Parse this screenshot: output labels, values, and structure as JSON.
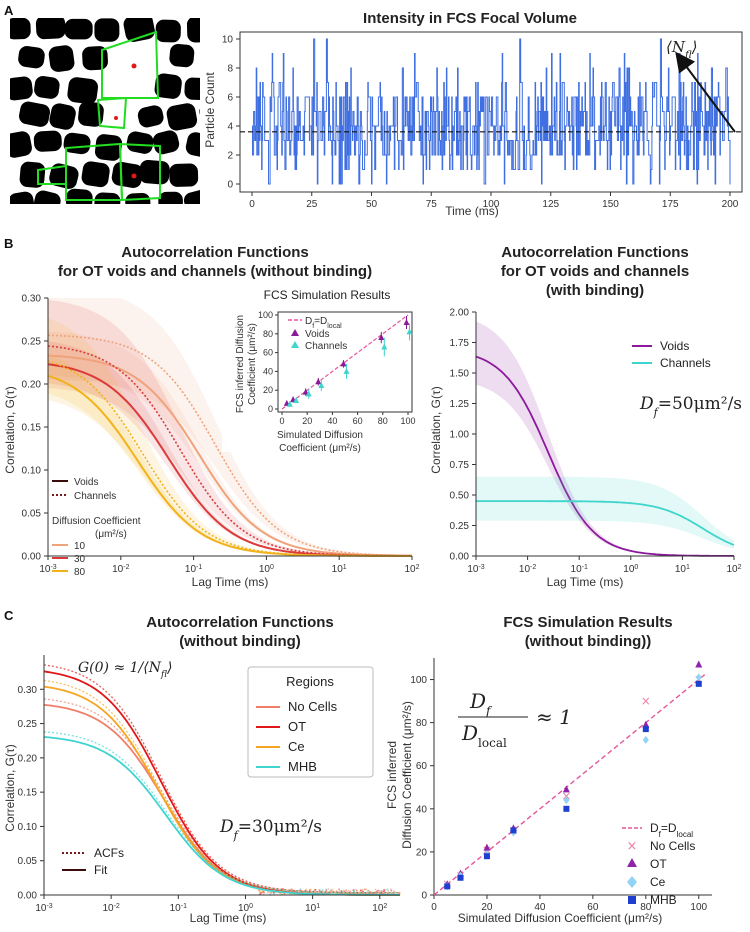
{
  "panel_labels": [
    "A",
    "B",
    "C"
  ],
  "colors": {
    "blue": "#3f6fe0",
    "voids": "#8b1a9b",
    "channels": "#3fd4cc",
    "d10": "#f0a27a",
    "d30": "#dc3a3a",
    "d80": "#f2b21a",
    "nocells": "#f07f6a",
    "ot": "#e01818",
    "ce": "#f5a623",
    "mhb": "#3fd4d0",
    "pink": "#e8559a",
    "ot_marker": "#8e24aa",
    "ce_marker": "#8fd3f5",
    "mhb_marker": "#1e3fcf"
  },
  "chart_data": [
    {
      "id": "A",
      "type": "line",
      "title": "Intensity in FCS Focal Volume",
      "xlabel": "Time (ms)",
      "ylabel": "Particle Count",
      "xlim": [
        0,
        200
      ],
      "ylim": [
        0,
        10
      ],
      "xticks": [
        0,
        25,
        50,
        75,
        100,
        125,
        150,
        175,
        200
      ],
      "yticks": [
        0,
        2,
        4,
        6,
        8,
        10
      ],
      "mean_line": 3.6,
      "annotation": "⟨N",
      "annotation_sub": "fl",
      "annotation_close": "⟩"
    },
    {
      "id": "B-left",
      "type": "line",
      "title": [
        "Autocorrelation Functions",
        "for OT voids and channels (without binding)"
      ],
      "xlabel": "Lag Time (ms)",
      "ylabel": "Correlation, G(τ)",
      "xscale": "log",
      "xlim": [
        0.001,
        100
      ],
      "ylim": [
        0,
        0.3
      ],
      "yticks": [
        "0.00",
        "0.05",
        "0.10",
        "0.15",
        "0.20",
        "0.25",
        "0.30"
      ],
      "xtick_base": "10",
      "xtick_exps": [
        "-3",
        "-2",
        "-1",
        "0",
        "1",
        "2"
      ],
      "legend_style": {
        "voids": "Voids",
        "channels": "Channels"
      },
      "legend_diff_title": [
        "Diffusion Coefficient",
        "(μm²/s)"
      ],
      "series": [
        {
          "name": "10",
          "region": "Voids",
          "g0": 0.235,
          "tau": 0.12
        },
        {
          "name": "10",
          "region": "Channels",
          "g0": 0.258,
          "tau": 0.2
        },
        {
          "name": "30",
          "region": "Voids",
          "g0": 0.228,
          "tau": 0.045
        },
        {
          "name": "30",
          "region": "Channels",
          "g0": 0.248,
          "tau": 0.065
        },
        {
          "name": "80",
          "region": "Voids",
          "g0": 0.222,
          "tau": 0.017
        },
        {
          "name": "80",
          "region": "Channels",
          "g0": 0.238,
          "tau": 0.02
        }
      ]
    },
    {
      "id": "B-inset",
      "type": "scatter",
      "title": "FCS Simulation Results",
      "xlabel": [
        "Simulated Diffusion",
        "Coefficient (μm²/s)"
      ],
      "ylabel": [
        "FCS inferred Diffusion",
        "Coefficient (μm²/s)"
      ],
      "xlim": [
        0,
        100
      ],
      "ylim": [
        0,
        100
      ],
      "xticks": [
        0,
        20,
        40,
        60,
        80,
        100
      ],
      "yticks": [
        0,
        20,
        40,
        60,
        80,
        100
      ],
      "reference_label": "D",
      "reference_sub_f": "f",
      "reference_eq": "=D",
      "reference_sub_local": "local",
      "series": [
        {
          "name": "Voids",
          "x": [
            5,
            10,
            20,
            30,
            50,
            80,
            100
          ],
          "y": [
            6,
            10,
            18,
            29,
            48,
            76,
            92
          ],
          "err": [
            2,
            3,
            4,
            4,
            4,
            6,
            7
          ]
        },
        {
          "name": "Channels",
          "x": [
            5,
            10,
            20,
            30,
            50,
            80,
            100
          ],
          "y": [
            5,
            9,
            16,
            25,
            40,
            66,
            82
          ],
          "err": [
            2,
            3,
            5,
            6,
            8,
            10,
            9
          ]
        }
      ]
    },
    {
      "id": "B-right",
      "type": "line",
      "title": [
        "Autocorrelation Functions",
        "for OT voids and channels",
        "(with binding)"
      ],
      "xlabel": "Lag Time (ms)",
      "ylabel": "Correlation, G(τ)",
      "xscale": "log",
      "xlim": [
        0.001,
        100
      ],
      "ylim": [
        0,
        2.0
      ],
      "yticks": [
        "0.00",
        "0.25",
        "0.50",
        "0.75",
        "1.00",
        "1.25",
        "1.50",
        "1.75",
        "2.00"
      ],
      "annotation": "D",
      "annotation_sub": "f",
      "annotation_rest": "=50μm²/s",
      "series": [
        {
          "name": "Voids",
          "g0": 1.7,
          "tau": 0.025,
          "band": 0.3
        },
        {
          "name": "Channels",
          "g0": 0.45,
          "tau": 25,
          "band": 0.2
        }
      ]
    },
    {
      "id": "C-left",
      "type": "line",
      "title": [
        "Autocorrelation Functions",
        "(without binding)"
      ],
      "xlabel": "Lag Time (ms)",
      "ylabel": "Correlation, G(τ)",
      "xscale": "log",
      "xlim": [
        0.001,
        200
      ],
      "ylim": [
        0,
        0.35
      ],
      "yticks": [
        "0.00",
        "0.05",
        "0.10",
        "0.15",
        "0.20",
        "0.25",
        "0.30"
      ],
      "legend_title": "Regions",
      "legend_style": {
        "acf": "ACFs",
        "fit": "Fit"
      },
      "annotation_eq": "G(0) ≈ 1/⟨N",
      "annotation_eq_sub": "fl",
      "annotation_eq_close": "⟩",
      "annotation": "D",
      "annotation_sub": "f",
      "annotation_rest": "=30μm²/s",
      "series": [
        {
          "name": "No Cells",
          "g0": 0.282,
          "tau": 0.06
        },
        {
          "name": "OT",
          "g0": 0.332,
          "tau": 0.055
        },
        {
          "name": "Ce",
          "g0": 0.31,
          "tau": 0.05
        },
        {
          "name": "MHB",
          "g0": 0.234,
          "tau": 0.065
        }
      ]
    },
    {
      "id": "C-right",
      "type": "scatter",
      "title": [
        "FCS Simulation Results",
        "(without binding))"
      ],
      "xlabel": "Simulated Diffusion Coefficient (μm²/s)",
      "ylabel": [
        "FCS inferred",
        "Diffusion Coefficient (μm²/s)"
      ],
      "xlim": [
        0,
        105
      ],
      "ylim": [
        0,
        110
      ],
      "xticks": [
        0,
        20,
        40,
        60,
        80,
        100
      ],
      "yticks": [
        0,
        20,
        40,
        60,
        80,
        100
      ],
      "ratio_num": "D",
      "ratio_num_sub": "f",
      "ratio_den": "D",
      "ratio_den_sub": "local",
      "ratio_rest": "≈ 1",
      "series": [
        {
          "name": "No Cells",
          "x": [
            5,
            10,
            20,
            30,
            50,
            80,
            100
          ],
          "y": [
            5,
            9,
            21,
            30,
            46,
            90,
            100
          ]
        },
        {
          "name": "OT",
          "x": [
            5,
            10,
            20,
            30,
            50,
            80,
            100
          ],
          "y": [
            5,
            10,
            22,
            31,
            49,
            79,
            107
          ]
        },
        {
          "name": "Ce",
          "x": [
            5,
            10,
            20,
            30,
            50,
            80,
            100
          ],
          "y": [
            4,
            9,
            19,
            29,
            44,
            72,
            101
          ]
        },
        {
          "name": "MHB",
          "x": [
            5,
            10,
            20,
            30,
            50,
            80,
            100
          ],
          "y": [
            4,
            8,
            18,
            30,
            40,
            77,
            98
          ]
        }
      ]
    }
  ]
}
